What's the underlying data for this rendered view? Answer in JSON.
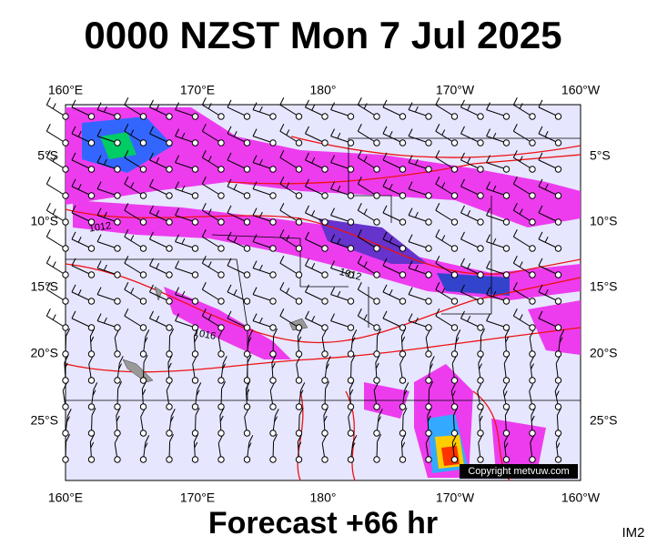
{
  "title": "0000 NZST Mon 7 Jul 2025",
  "lon_labels": [
    "160°E",
    "170°E",
    "180°",
    "170°W",
    "160°W"
  ],
  "lat_labels": [
    "5°S",
    "10°S",
    "15°S",
    "20°S",
    "25°S"
  ],
  "isobar_labels": [
    "1012",
    "1012",
    "1016"
  ],
  "copyright": "Copyright metvuw.com",
  "footer": "Forecast +66 hr",
  "image_id": "IM2"
}
